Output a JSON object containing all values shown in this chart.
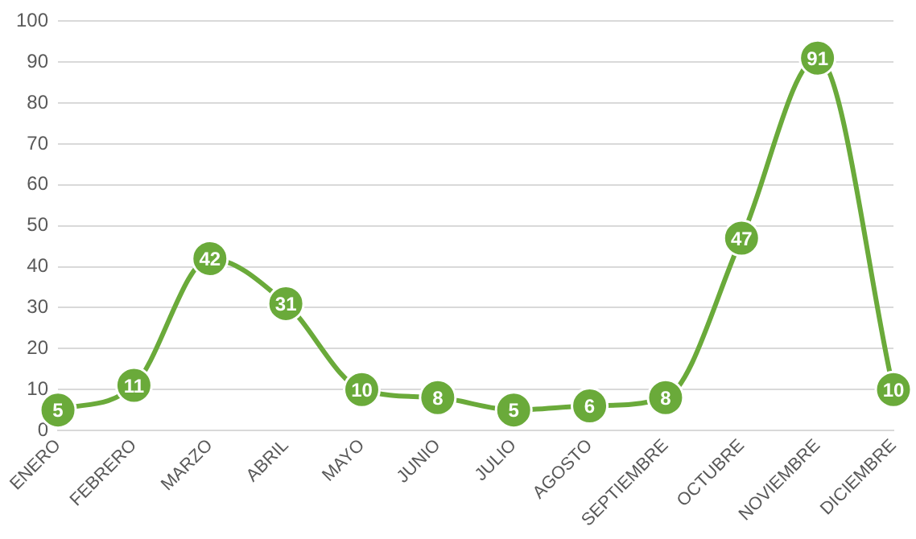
{
  "chart_data": {
    "type": "line",
    "categories": [
      "ENERO",
      "FEBRERO",
      "MARZO",
      "ABRIL",
      "MAYO",
      "JUNIO",
      "JULIO",
      "AGOSTO",
      "SEPTIEMBRE",
      "OCTUBRE",
      "NOVIEMBRE",
      "DICIEMBRE"
    ],
    "series": [
      {
        "color": "#6aaa3a",
        "values": [
          5,
          11,
          42,
          31,
          10,
          8,
          5,
          6,
          8,
          47,
          91,
          10
        ]
      }
    ],
    "ylim": [
      0,
      100
    ],
    "yticks": [
      0,
      10,
      20,
      30,
      40,
      50,
      60,
      70,
      80,
      90,
      100
    ],
    "grid": "y",
    "legend": false,
    "marker": "circle",
    "line_style": "solid",
    "data_labels": true
  }
}
